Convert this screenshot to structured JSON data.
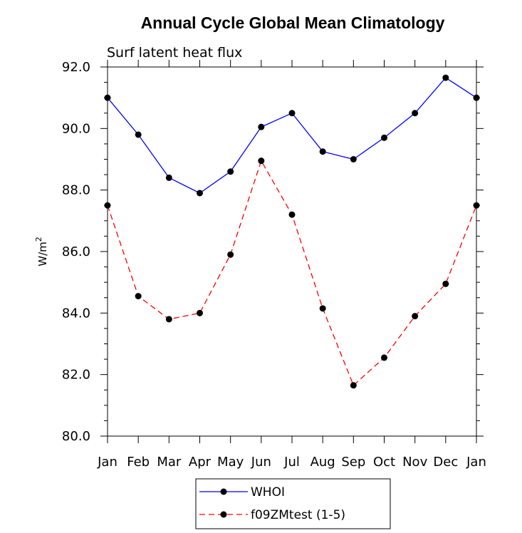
{
  "chart_data": {
    "type": "line",
    "title": "Annual Cycle Global Mean Climatology",
    "subtitle": "Surf latent heat flux",
    "xlabel": "",
    "ylabel": "W/m",
    "ylabel_superscript": "2",
    "categories": [
      "Jan",
      "Feb",
      "Mar",
      "Apr",
      "May",
      "Jun",
      "Jul",
      "Aug",
      "Sep",
      "Oct",
      "Nov",
      "Dec",
      "Jan"
    ],
    "ylim": [
      80.0,
      92.0
    ],
    "yticks": [
      "80.0",
      "82.0",
      "84.0",
      "86.0",
      "88.0",
      "90.0",
      "92.0"
    ],
    "grid": false,
    "legend_position": "bottom-center",
    "series": [
      {
        "name": "WHOI",
        "color": "#0000ff",
        "line_style": "solid",
        "marker": "circle",
        "values": [
          91.0,
          89.8,
          88.4,
          87.9,
          88.6,
          90.05,
          90.5,
          89.25,
          89.0,
          89.7,
          90.5,
          91.65,
          91.0
        ]
      },
      {
        "name": "f09ZMtest (1-5)",
        "color": "#ff0000",
        "line_style": "dashed",
        "marker": "circle",
        "values": [
          87.5,
          84.55,
          83.8,
          84.0,
          85.9,
          88.95,
          87.2,
          84.15,
          81.65,
          82.55,
          83.9,
          84.95,
          87.5
        ]
      }
    ]
  }
}
